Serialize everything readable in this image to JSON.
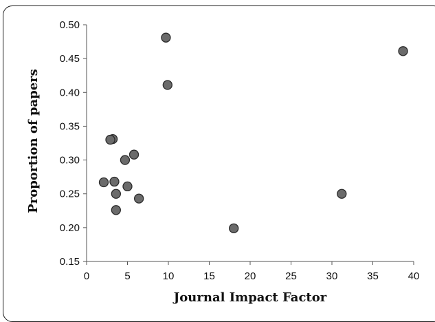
{
  "chart_data": {
    "type": "scatter",
    "title": "",
    "xlabel": "Journal Impact Factor",
    "ylabel": "Proportion of papers",
    "xlim": [
      0,
      40
    ],
    "ylim": [
      0.15,
      0.5
    ],
    "x_ticks": [
      0,
      5,
      10,
      15,
      20,
      25,
      30,
      35,
      40
    ],
    "y_ticks": [
      0.15,
      0.2,
      0.25,
      0.3,
      0.35,
      0.4,
      0.45,
      0.5
    ],
    "x_tick_labels": [
      "0",
      "5",
      "10",
      "15",
      "20",
      "25",
      "30",
      "35",
      "40"
    ],
    "y_tick_labels": [
      "0.15",
      "0.20",
      "0.25",
      "0.30",
      "0.35",
      "0.40",
      "0.45",
      "0.50"
    ],
    "grid": false,
    "legend": "none",
    "marker_color": "#6b6b6b",
    "marker_edge": "#2b2b2b",
    "points": [
      {
        "x": 9.7,
        "y": 0.481
      },
      {
        "x": 38.7,
        "y": 0.461
      },
      {
        "x": 9.9,
        "y": 0.411
      },
      {
        "x": 3.2,
        "y": 0.331
      },
      {
        "x": 2.9,
        "y": 0.33
      },
      {
        "x": 5.8,
        "y": 0.308
      },
      {
        "x": 4.7,
        "y": 0.3
      },
      {
        "x": 2.1,
        "y": 0.267
      },
      {
        "x": 3.4,
        "y": 0.268
      },
      {
        "x": 5.0,
        "y": 0.261
      },
      {
        "x": 3.6,
        "y": 0.25
      },
      {
        "x": 31.2,
        "y": 0.25
      },
      {
        "x": 6.4,
        "y": 0.243
      },
      {
        "x": 3.6,
        "y": 0.226
      },
      {
        "x": 18.0,
        "y": 0.199
      }
    ]
  }
}
